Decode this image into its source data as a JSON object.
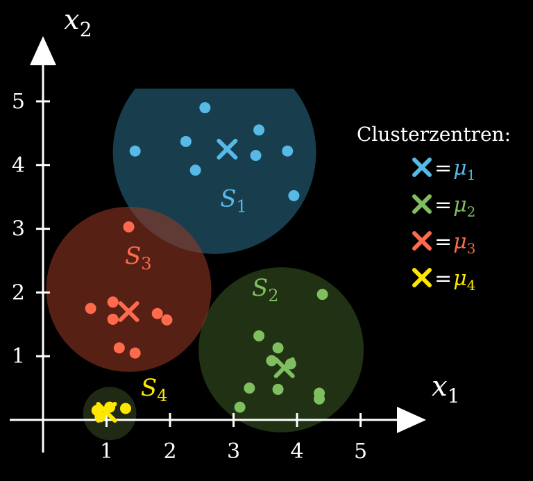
{
  "chart_data": {
    "type": "scatter",
    "xlabel_base": "x",
    "xlabel_sub": "1",
    "ylabel_base": "x",
    "ylabel_sub": "2",
    "x_ticks": [
      "1",
      "2",
      "3",
      "4",
      "5"
    ],
    "y_ticks": [
      "1",
      "2",
      "3",
      "4",
      "5"
    ],
    "xlim": [
      -0.5,
      5.9
    ],
    "ylim": [
      -0.8,
      5.8
    ],
    "legend": {
      "title": "Clusterzentren:",
      "placement": "right",
      "entries": [
        {
          "marker": "×",
          "eq": "=",
          "mu": "μ",
          "sub": "1",
          "color": "#56b9e6"
        },
        {
          "marker": "×",
          "eq": "=",
          "mu": "μ",
          "sub": "2",
          "color": "#80bf5f"
        },
        {
          "marker": "×",
          "eq": "=",
          "mu": "μ",
          "sub": "3",
          "color": "#ff6a4d"
        },
        {
          "marker": "×",
          "eq": "=",
          "mu": "μ",
          "sub": "4",
          "color": "#ffe800"
        }
      ]
    },
    "clusters": [
      {
        "label_base": "S",
        "label_sub": "1",
        "color": "#56b9e6",
        "fill": "#2b6f8c",
        "center": [
          2.7,
          4.2
        ],
        "radius": 1.6,
        "clip_top": 5.2,
        "label_pos": [
          3.0,
          3.35
        ],
        "centroid": [
          2.9,
          4.25
        ],
        "points": [
          [
            1.45,
            4.22
          ],
          [
            2.55,
            4.9
          ],
          [
            2.25,
            4.37
          ],
          [
            2.4,
            3.92
          ],
          [
            3.4,
            4.55
          ],
          [
            3.35,
            4.15
          ],
          [
            3.85,
            4.22
          ],
          [
            3.95,
            3.52
          ]
        ]
      },
      {
        "label_base": "S",
        "label_sub": "2",
        "color": "#80bf5f",
        "fill": "#3a5a25",
        "center": [
          3.75,
          1.1
        ],
        "radius": 1.3,
        "label_pos": [
          3.5,
          1.95
        ],
        "centroid": [
          3.8,
          0.82
        ],
        "points": [
          [
            4.4,
            1.97
          ],
          [
            3.4,
            1.32
          ],
          [
            3.7,
            1.13
          ],
          [
            3.6,
            0.93
          ],
          [
            3.9,
            0.88
          ],
          [
            3.25,
            0.5
          ],
          [
            3.7,
            0.48
          ],
          [
            4.35,
            0.42
          ],
          [
            4.35,
            0.33
          ],
          [
            3.1,
            0.2
          ]
        ]
      },
      {
        "label_base": "S",
        "label_sub": "3",
        "color": "#ff6a4d",
        "fill": "#9c3a24",
        "center": [
          1.35,
          2.05
        ],
        "radius": 1.3,
        "label_pos": [
          1.5,
          2.45
        ],
        "centroid": [
          1.35,
          1.7
        ],
        "points": [
          [
            1.35,
            3.03
          ],
          [
            0.75,
            1.75
          ],
          [
            1.1,
            1.85
          ],
          [
            1.1,
            1.58
          ],
          [
            1.8,
            1.67
          ],
          [
            1.95,
            1.57
          ],
          [
            1.2,
            1.13
          ],
          [
            1.45,
            1.05
          ]
        ]
      },
      {
        "label_base": "S",
        "label_sub": "4",
        "color": "#ffe800",
        "fill": "#3a4a25",
        "center": [
          1.05,
          0.1
        ],
        "radius": 0.42,
        "label_pos": [
          1.75,
          0.38
        ],
        "centroid": [
          1.0,
          0.12
        ],
        "points": [
          [
            0.85,
            0.15
          ],
          [
            0.9,
            0.05
          ],
          [
            1.3,
            0.18
          ],
          [
            1.05,
            0.2
          ]
        ]
      }
    ]
  }
}
